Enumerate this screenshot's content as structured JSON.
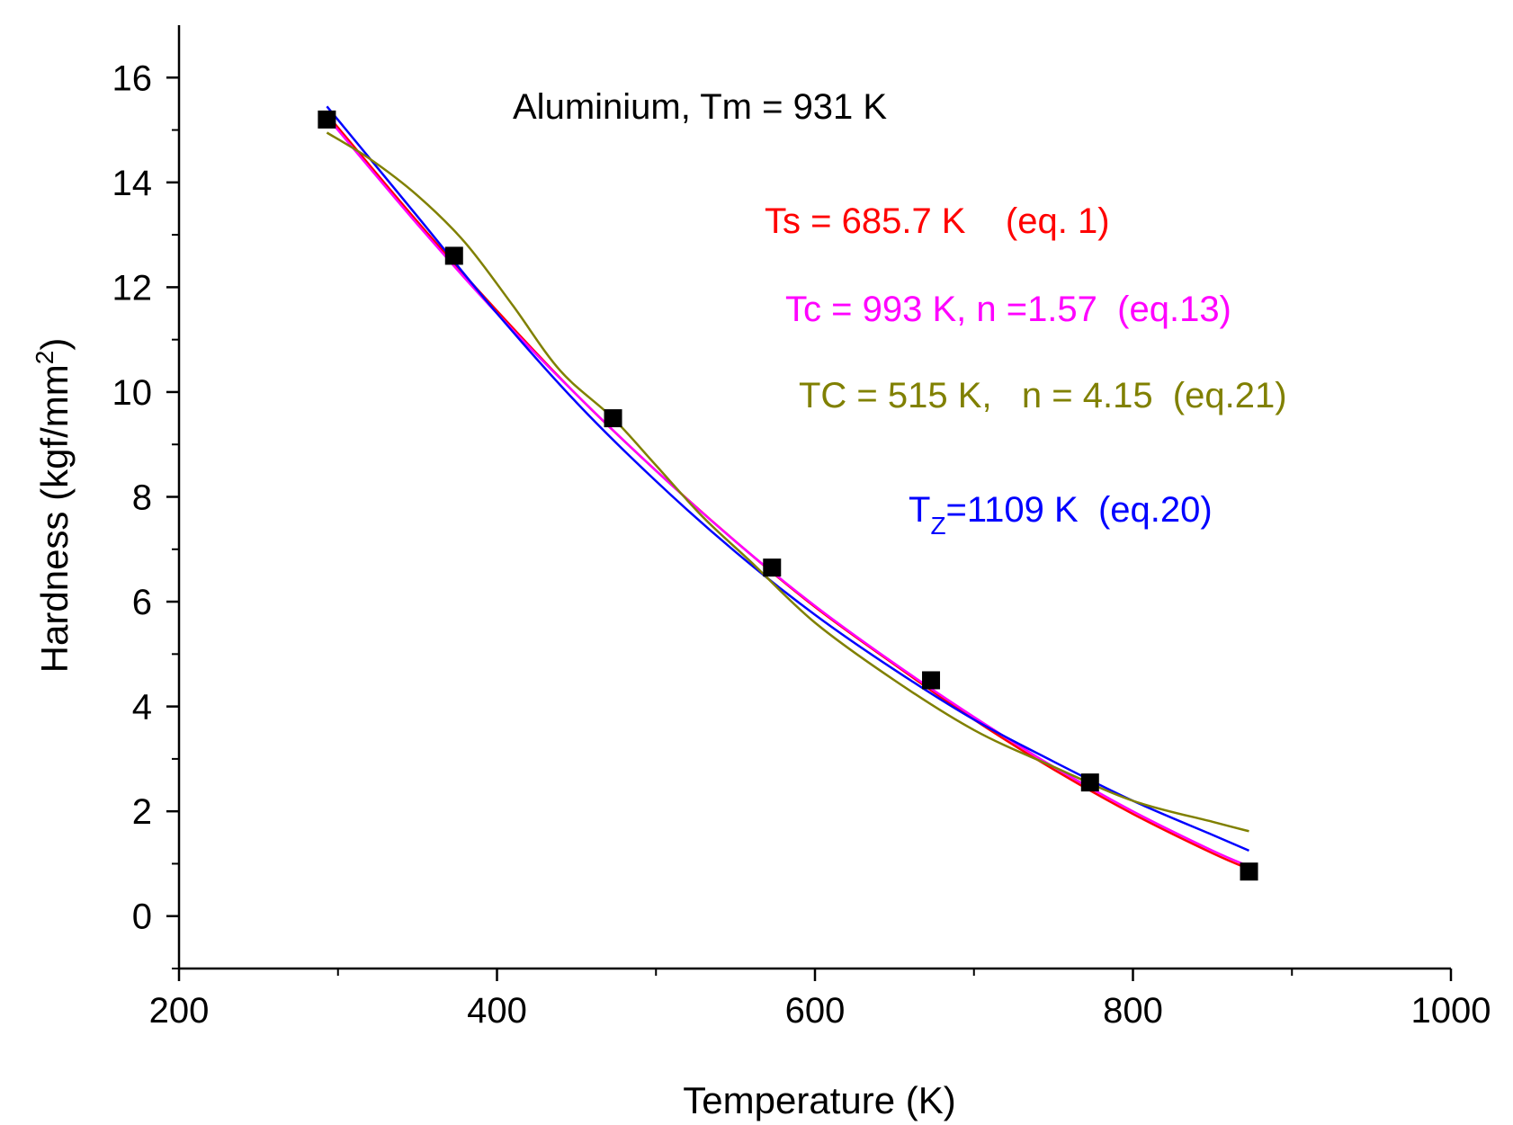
{
  "chart_data": {
    "type": "scatter",
    "title": "Aluminium, Tm = 931 K",
    "xlabel": "Temperature (K)",
    "ylabel": "Hardness (kgf/mm²)",
    "ylabel_parts": {
      "base": "Hardness (kgf/mm",
      "sup": "2",
      "end": ")"
    },
    "xlim": [
      200,
      1000
    ],
    "ylim": [
      -1,
      17
    ],
    "x_major_ticks": [
      200,
      400,
      600,
      800,
      1000
    ],
    "x_tick_labels": [
      "200",
      "400",
      "600",
      "800",
      "1000"
    ],
    "x_minor_ticks": [
      300,
      500,
      700,
      900
    ],
    "y_major_ticks": [
      0,
      2,
      4,
      6,
      8,
      10,
      12,
      14,
      16
    ],
    "y_tick_labels": [
      "0",
      "2",
      "4",
      "6",
      "8",
      "10",
      "12",
      "14",
      "16"
    ],
    "y_minor_ticks": [
      -1,
      1,
      3,
      5,
      7,
      9,
      11,
      13,
      15
    ],
    "grid": false,
    "points": {
      "name": "Measured hardness",
      "marker": "square",
      "color": "#000000",
      "x": [
        293,
        373,
        473,
        573,
        673,
        773,
        873
      ],
      "y": [
        15.2,
        12.6,
        9.5,
        6.65,
        4.5,
        2.55,
        0.85
      ]
    },
    "series": [
      {
        "name": "eq. 1",
        "color": "#ff0000",
        "x": [
          293,
          350,
          400,
          450,
          500,
          550,
          600,
          650,
          700,
          750,
          800,
          850,
          873
        ],
        "y": [
          15.3,
          13.25,
          11.55,
          9.95,
          8.5,
          7.15,
          5.9,
          4.8,
          3.75,
          2.8,
          1.95,
          1.2,
          0.9
        ]
      },
      {
        "name": "eq.13",
        "color": "#ff00ff",
        "x": [
          293,
          350,
          400,
          450,
          500,
          550,
          600,
          650,
          700,
          750,
          800,
          850,
          873
        ],
        "y": [
          15.25,
          13.2,
          11.5,
          9.95,
          8.5,
          7.15,
          5.92,
          4.82,
          3.8,
          2.85,
          2.0,
          1.25,
          0.95
        ]
      },
      {
        "name": "eq.20",
        "color": "#0000ff",
        "x": [
          293,
          350,
          400,
          450,
          500,
          550,
          600,
          650,
          700,
          750,
          800,
          850,
          873
        ],
        "y": [
          15.45,
          13.35,
          11.5,
          9.8,
          8.3,
          6.95,
          5.75,
          4.7,
          3.75,
          2.95,
          2.2,
          1.55,
          1.25
        ]
      },
      {
        "name": "eq.21",
        "color": "#808000",
        "x": [
          293,
          320,
          350,
          380,
          410,
          440,
          473,
          500,
          530,
          560,
          600,
          650,
          700,
          750,
          800,
          850,
          873
        ],
        "y": [
          14.95,
          14.45,
          13.75,
          12.85,
          11.65,
          10.4,
          9.5,
          8.6,
          7.6,
          6.75,
          5.6,
          4.5,
          3.55,
          2.85,
          2.2,
          1.8,
          1.62
        ]
      }
    ],
    "annotations": [
      {
        "id": "eq1",
        "text": "Ts = 685.7 K    (eq. 1)",
        "color": "#ff0000"
      },
      {
        "id": "eq13",
        "text": "Tc = 993 K, n =1.57  (eq.13)",
        "color": "#ff00ff"
      },
      {
        "id": "eq21",
        "text": "TC = 515 K,   n = 4.15  (eq.21)",
        "color": "#808000"
      },
      {
        "id": "eq20",
        "base": "T",
        "sub": "Z",
        "rest": "=1109 K  (eq.20)",
        "color": "#0000ff"
      }
    ]
  }
}
